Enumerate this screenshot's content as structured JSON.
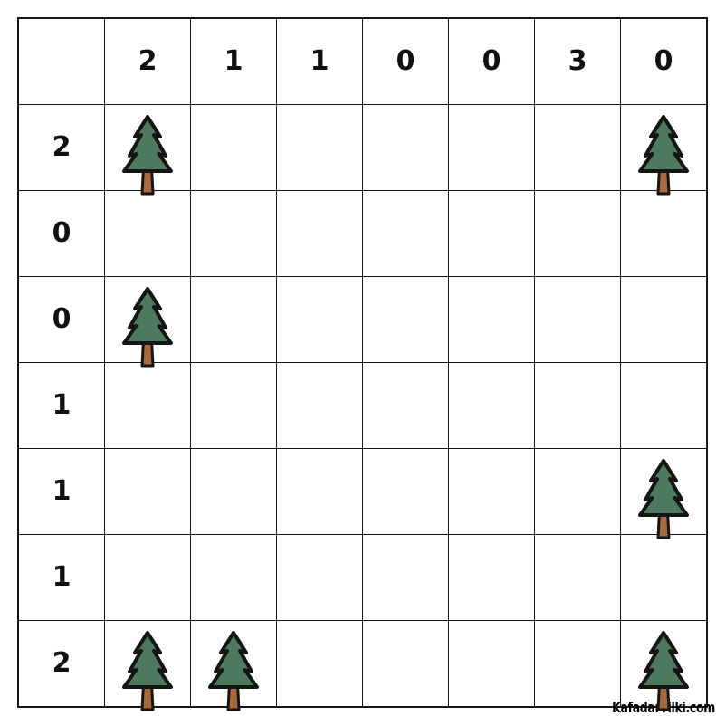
{
  "watermark": "KafadarTilki.com",
  "colors": {
    "background": "#ffffff",
    "grid_line": "#161616",
    "clue_number": "#111111",
    "tree_green": "#4d7a5e",
    "trunk_brown": "#a8693c",
    "tree_outline": "#151515"
  },
  "puzzle": {
    "type": "tents-trees-grid",
    "grid_size": 7,
    "col_clues": [
      "2",
      "1",
      "1",
      "0",
      "0",
      "3",
      "0"
    ],
    "row_clues": [
      "2",
      "0",
      "0",
      "1",
      "1",
      "1",
      "2"
    ],
    "tree_cells": [
      {
        "row": 1,
        "col": 1
      },
      {
        "row": 1,
        "col": 7
      },
      {
        "row": 3,
        "col": 1
      },
      {
        "row": 5,
        "col": 7
      },
      {
        "row": 7,
        "col": 1
      },
      {
        "row": 7,
        "col": 2
      },
      {
        "row": 7,
        "col": 7
      }
    ]
  }
}
